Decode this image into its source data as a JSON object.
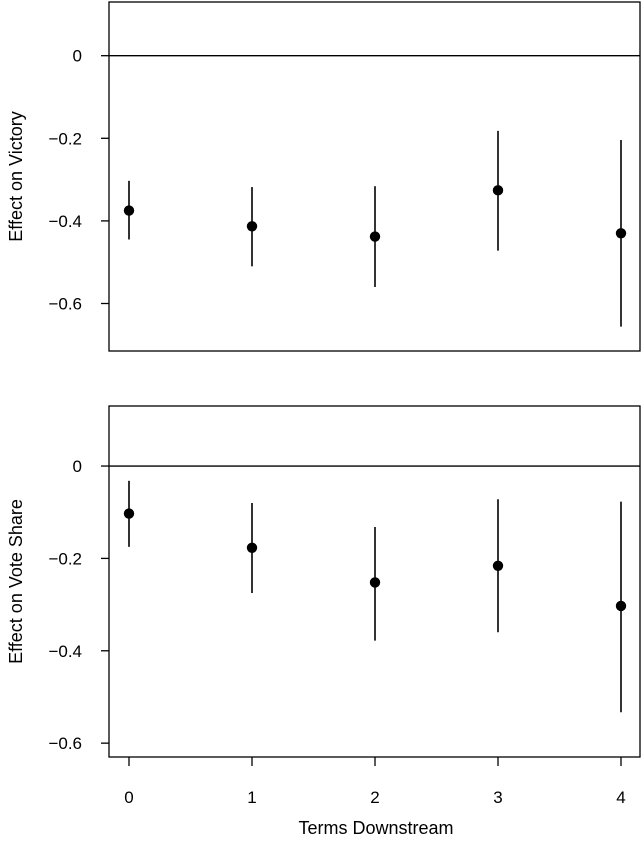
{
  "chart_data": [
    {
      "type": "scatter",
      "title": "",
      "xlabel": "",
      "ylabel": "Effect on Victory",
      "x": [
        0,
        1,
        2,
        3,
        4
      ],
      "y": [
        -0.375,
        -0.413,
        -0.438,
        -0.326,
        -0.43
      ],
      "ci_low": [
        -0.445,
        -0.51,
        -0.56,
        -0.472,
        -0.656
      ],
      "ci_high": [
        -0.303,
        -0.318,
        -0.316,
        -0.182,
        -0.204
      ],
      "reference_line": 0,
      "ylim": [
        -0.715,
        0.13
      ],
      "yticks": [
        0,
        -0.2,
        -0.4,
        -0.6
      ],
      "ytick_labels": [
        "0",
        "−0.2",
        "−0.4",
        "−0.6"
      ],
      "show_xticks": false
    },
    {
      "type": "scatter",
      "title": "",
      "xlabel": "Terms Downstream",
      "ylabel": "Effect on Vote Share",
      "x": [
        0,
        1,
        2,
        3,
        4
      ],
      "y": [
        -0.103,
        -0.177,
        -0.252,
        -0.216,
        -0.303
      ],
      "ci_low": [
        -0.175,
        -0.275,
        -0.378,
        -0.36,
        -0.533
      ],
      "ci_high": [
        -0.032,
        -0.08,
        -0.132,
        -0.072,
        -0.077
      ],
      "reference_line": 0,
      "ylim": [
        -0.63,
        0.13
      ],
      "yticks": [
        0,
        -0.2,
        -0.4,
        -0.6
      ],
      "ytick_labels": [
        "0",
        "−0.2",
        "−0.4",
        "−0.6"
      ],
      "show_xticks": true,
      "xticks": [
        0,
        1,
        2,
        3,
        4
      ],
      "xtick_labels": [
        "0",
        "1",
        "2",
        "3",
        "4"
      ]
    }
  ]
}
